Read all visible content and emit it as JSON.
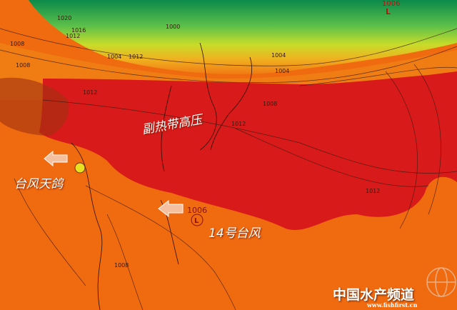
{
  "labels": {
    "subtropical_high": "副热带高压",
    "typhoon_hato": "台风天鸽",
    "typhoon_14": "14号台风",
    "low_pressure_value": "1006",
    "low_symbol": "L",
    "top_low_value": "1006",
    "top_low_symbol": "L"
  },
  "isobars": [
    "1020",
    "1016",
    "1012",
    "1008",
    "1004",
    "1000",
    "1008",
    "1012",
    "1004",
    "1008",
    "1012",
    "1012",
    "1008",
    "1012",
    "1004"
  ],
  "watermark": {
    "name": "中国水产频道",
    "url": "www.fishfirst.cn"
  },
  "colors": {
    "background": "#f06a10",
    "high_core": "#d81a1a",
    "green": "#2aa84a",
    "yellow": "#d8e020",
    "arrow": "#f4c0a0"
  }
}
